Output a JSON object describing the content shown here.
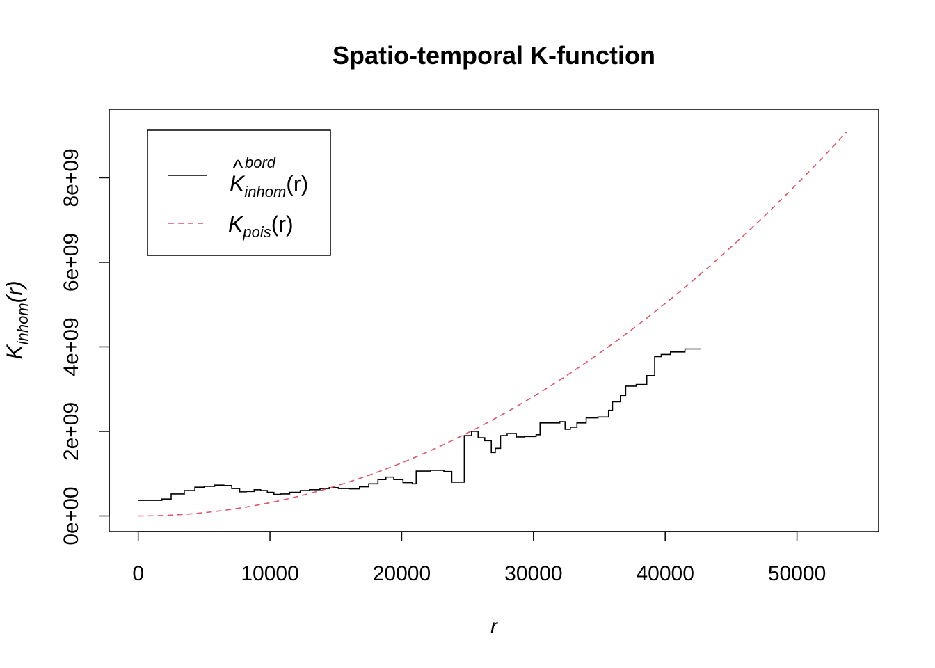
{
  "chart_data": {
    "type": "line",
    "title": "Spatio-temporal K-function",
    "xlabel": "r",
    "ylabel": {
      "main": "K",
      "sub": "inhom",
      "arg": "(r)"
    },
    "xlim": [
      -2200,
      56200
    ],
    "ylim": [
      -370000000,
      9620000000
    ],
    "x_ticks": [
      0,
      10000,
      20000,
      30000,
      40000,
      50000
    ],
    "x_tick_labels": [
      "0",
      "10000",
      "20000",
      "30000",
      "40000",
      "50000"
    ],
    "y_ticks": [
      0,
      2000000000,
      4000000000,
      6000000000,
      8000000000
    ],
    "y_tick_labels": [
      "0e+00",
      "2e+09",
      "4e+09",
      "6e+09",
      "8e+09"
    ],
    "grid": false,
    "legend_position": "top-left",
    "series": [
      {
        "name": "K^bord_inhom(r)",
        "legend": {
          "main": "K",
          "hat": "^",
          "sup": "bord",
          "sub": "inhom",
          "arg": "(r)"
        },
        "color": "#000000",
        "dash": "solid",
        "step": true,
        "x": [
          0,
          1000,
          1800,
          2500,
          3500,
          4300,
          5000,
          5800,
          6500,
          7100,
          7700,
          8200,
          8800,
          9300,
          9800,
          10300,
          10800,
          11500,
          12300,
          13000,
          13800,
          14500,
          15200,
          16000,
          16800,
          17500,
          18200,
          18800,
          19400,
          20100,
          20800,
          21100,
          22200,
          23200,
          23800,
          24700,
          24750,
          25300,
          25800,
          26300,
          26800,
          27100,
          27500,
          28000,
          28700,
          29300,
          30200,
          30500,
          31300,
          32000,
          32400,
          32800,
          33300,
          34000,
          34900,
          35700,
          36000,
          36600,
          37000,
          37800,
          38600,
          39200,
          39700,
          40400,
          41500,
          42700
        ],
        "y": [
          370000000,
          370000000,
          400000000,
          520000000,
          600000000,
          680000000,
          700000000,
          730000000,
          720000000,
          650000000,
          570000000,
          580000000,
          620000000,
          600000000,
          560000000,
          510000000,
          520000000,
          560000000,
          600000000,
          620000000,
          650000000,
          670000000,
          650000000,
          640000000,
          690000000,
          760000000,
          860000000,
          920000000,
          860000000,
          790000000,
          760000000,
          1060000000,
          1080000000,
          1050000000,
          800000000,
          800000000,
          1900000000,
          2000000000,
          1850000000,
          1780000000,
          1500000000,
          1600000000,
          1900000000,
          1950000000,
          1870000000,
          1880000000,
          1920000000,
          2200000000,
          2200000000,
          2230000000,
          2050000000,
          2100000000,
          2200000000,
          2320000000,
          2340000000,
          2500000000,
          2700000000,
          2850000000,
          3070000000,
          3110000000,
          3320000000,
          3770000000,
          3820000000,
          3880000000,
          3950000000,
          3950000000
        ]
      },
      {
        "name": "K_pois(r)",
        "legend": {
          "main": "K",
          "sub": "pois",
          "arg": "(r)"
        },
        "color": "#DF536B",
        "dash": "dashed",
        "formula": "pi * r^2",
        "x_range": [
          0,
          53800
        ]
      }
    ]
  }
}
